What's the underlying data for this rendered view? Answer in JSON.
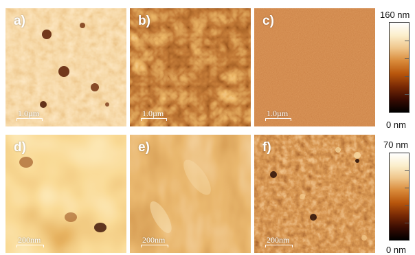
{
  "figure": {
    "panels": [
      {
        "label": "a)",
        "scalebar": "1.0µm"
      },
      {
        "label": "b)",
        "scalebar": "1.0µm"
      },
      {
        "label": "c)",
        "scalebar": "1.0µm"
      },
      {
        "label": "d)",
        "scalebar": "200nm"
      },
      {
        "label": "e)",
        "scalebar": "200nm"
      },
      {
        "label": "f)",
        "scalebar": "200nm"
      }
    ],
    "colorbars": [
      {
        "max_label": "160 nm",
        "min_label": "0 nm"
      },
      {
        "max_label": "70 nm",
        "min_label": "0 nm"
      }
    ],
    "colormap": [
      "#000000",
      "#3a0c02",
      "#7a2a05",
      "#b8560c",
      "#d98a3a",
      "#efc58a",
      "#fbeecb",
      "#ffffff"
    ]
  }
}
